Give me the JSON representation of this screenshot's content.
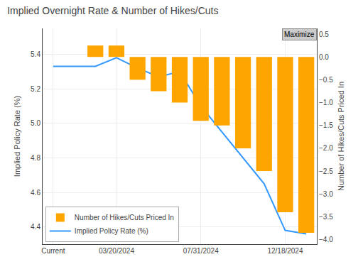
{
  "chart_data": {
    "type": "line",
    "title": "Implied Overnight Rate & Number of Hikes/Cuts",
    "categories": [
      "Current",
      null,
      null,
      "03/20/2024",
      null,
      null,
      null,
      "07/31/2024",
      null,
      null,
      null,
      "12/18/2024",
      null
    ],
    "series": [
      {
        "name": "Implied Policy Rate (%)",
        "type": "line",
        "color": "#3399ff",
        "values": [
          5.33,
          5.33,
          5.33,
          5.38,
          5.32,
          5.27,
          5.3,
          5.1,
          4.95,
          4.8,
          4.65,
          4.38,
          4.36
        ]
      },
      {
        "name": "Number of Hikes/Cuts Priced In",
        "type": "bar",
        "color": "#FFA500",
        "axis": "y2",
        "values": [
          null,
          null,
          0.25,
          0.25,
          -0.5,
          -0.75,
          -1.0,
          -1.4,
          -1.5,
          -2.0,
          -2.5,
          -3.4,
          -3.85
        ]
      }
    ],
    "ylabel": "Implied Policy Rate (%)",
    "y2label": "Number of Hikes/Cuts Priced In",
    "ylim": [
      4.3,
      5.55
    ],
    "yticks": [
      4.4,
      4.6,
      4.8,
      {
        "value": 5.0,
        "label": "5.0"
      },
      5.2,
      5.4
    ],
    "y2lim": [
      -4.1,
      0.625
    ],
    "y2ticks": [
      0.5,
      {
        "value": 0.0,
        "label": "0.0"
      },
      {
        "value": -0.5,
        "label": "−0.5"
      },
      {
        "value": -1.0,
        "label": "−1.0"
      },
      {
        "value": -1.5,
        "label": "−1.5"
      },
      {
        "value": -2.0,
        "label": "−2.0"
      },
      {
        "value": -2.5,
        "label": "−2.5"
      },
      {
        "value": -3.0,
        "label": "−3.0"
      },
      {
        "value": -3.5,
        "label": "−3.5"
      },
      {
        "value": -4.0,
        "label": "−4.0"
      }
    ],
    "grid": true,
    "legend": "lower left",
    "annotations": [
      "Maximize"
    ]
  }
}
